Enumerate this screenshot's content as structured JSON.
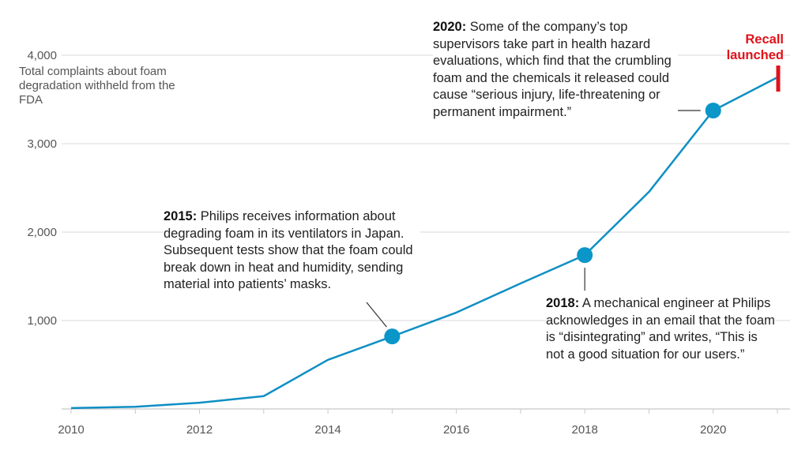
{
  "chart_data": {
    "type": "line",
    "title": "",
    "ylabel": "Total complaints about foam degradation withheld from the FDA",
    "xlabel": "",
    "x": [
      2010,
      2011,
      2012,
      2013,
      2014,
      2015,
      2016,
      2017,
      2018,
      2019,
      2020,
      2021
    ],
    "series": [
      {
        "name": "Complaints",
        "values": [
          10,
          25,
          70,
          145,
          555,
          820,
          1090,
          1420,
          1740,
          2455,
          3375,
          3750
        ]
      }
    ],
    "xlim": [
      2010,
      2021
    ],
    "ylim": [
      0,
      4000
    ],
    "yticks": [
      1000,
      2000,
      3000,
      4000
    ],
    "ytick_labels": [
      "1,000",
      "2,000",
      "3,000",
      "4,000"
    ],
    "xticks_labeled": [
      2010,
      2012,
      2014,
      2016,
      2018,
      2020
    ],
    "xtick_labels": [
      "2010",
      "2012",
      "2014",
      "2016",
      "2018",
      "2020"
    ],
    "highlight_years": [
      2015,
      2018,
      2020
    ],
    "grid": true,
    "colors": {
      "line": "#0f8fc4",
      "marker": "#0a96c8",
      "recall": "#e1121b",
      "grid": "#d8d8d8"
    },
    "recall": {
      "year": 2021,
      "label_line1": "Recall",
      "label_line2": "launched"
    },
    "annotations": [
      {
        "year": 2015,
        "lead": "2015:",
        "text": " Philips receives information about degrading foam in its ventilators in Japan. Subsequent tests show that the foam could break down in heat and humidity, sending material into patients’ masks."
      },
      {
        "year": 2018,
        "lead": "2018:",
        "text": " A mechanical engineer at Philips acknowledges in an email that the foam is “disintegrating” and writes, “This is not a good situation for our users.”"
      },
      {
        "year": 2020,
        "lead": "2020:",
        "text": " Some of the company’s top supervisors take part in health hazard evaluations, which find that the crumbling foam and the chemicals it released could cause “serious injury, life-threatening or permanent impairment.”"
      }
    ]
  }
}
